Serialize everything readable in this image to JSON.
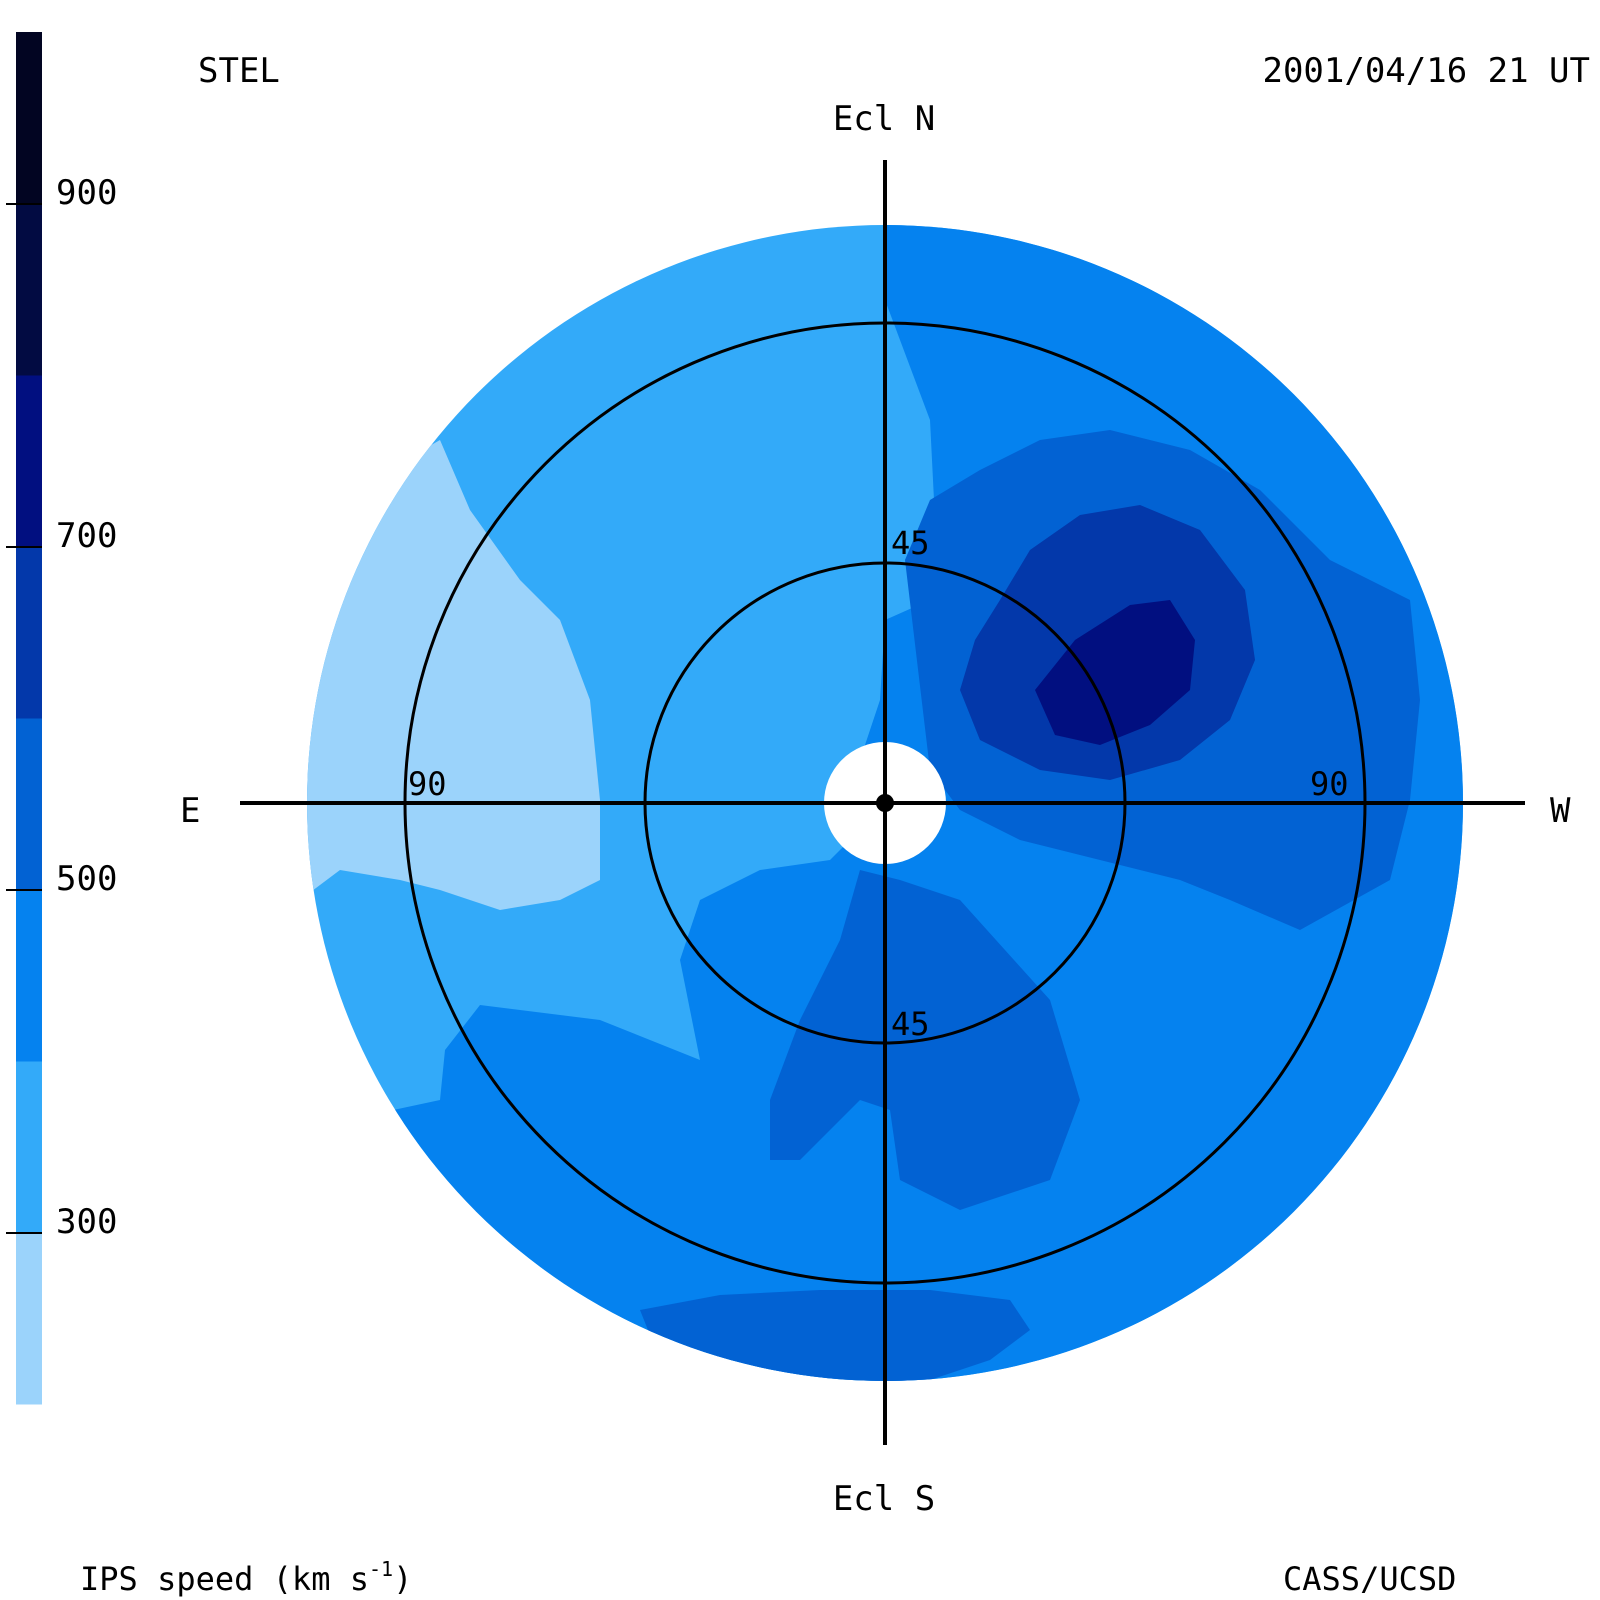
{
  "header": {
    "station": "STEL",
    "timestamp": "2001/04/16 21 UT"
  },
  "footer": {
    "credit": "CASS/UCSD"
  },
  "colorbar": {
    "label_main": "IPS speed (km s",
    "label_sup": "-1",
    "label_close": ")",
    "tick_values": [
      "900",
      "700",
      "500",
      "300"
    ],
    "bands": [
      {
        "from": 200,
        "to": 300,
        "color": "#9bd3fb"
      },
      {
        "from": 300,
        "to": 400,
        "color": "#33aaf9"
      },
      {
        "from": 400,
        "to": 500,
        "color": "#0582ef"
      },
      {
        "from": 500,
        "to": 600,
        "color": "#0262d3"
      },
      {
        "from": 600,
        "to": 700,
        "color": "#0338aa"
      },
      {
        "from": 700,
        "to": 800,
        "color": "#010f80"
      },
      {
        "from": 800,
        "to": 900,
        "color": "#020b42"
      },
      {
        "from": 900,
        "to": 1000,
        "color": "#020522"
      }
    ]
  },
  "map": {
    "directions": {
      "north": "Ecl N",
      "south": "Ecl S",
      "east": "E",
      "west": "W"
    },
    "elongation_labels": {
      "inner_top": "45",
      "inner_bottom": "45",
      "outer_left": "90",
      "outer_right": "90"
    },
    "elongation_rings_deg": [
      45,
      90
    ],
    "colors": {
      "ring": "#000000",
      "sun_disk": "#ffffff"
    }
  }
}
